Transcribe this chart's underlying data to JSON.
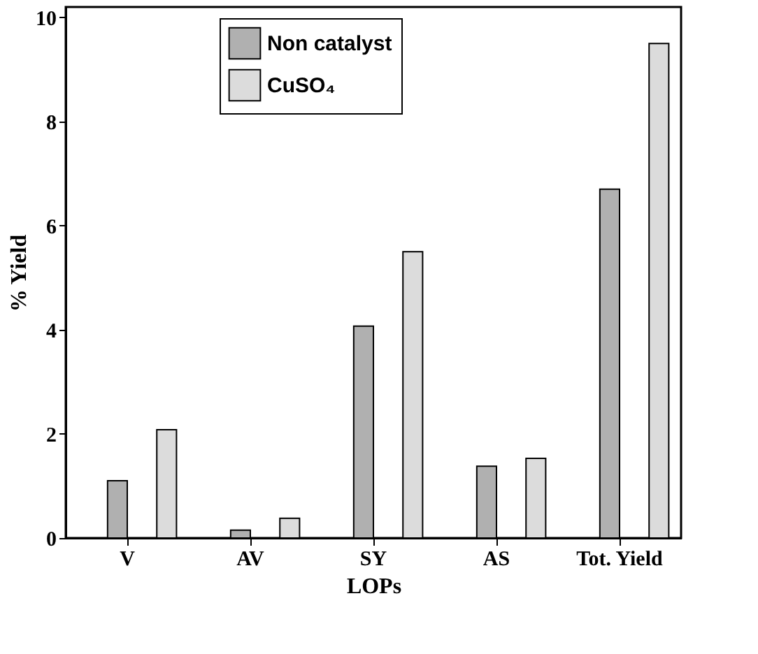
{
  "chart_data": {
    "type": "bar",
    "xlabel": "LOPs",
    "ylabel": "% Yield",
    "categories": [
      "V",
      "AV",
      "SY",
      "AS",
      "Tot. Yield"
    ],
    "series": [
      {
        "name": "Non catalyst",
        "color": "#b0b0b0",
        "values": [
          1.1,
          0.15,
          4.07,
          1.38,
          6.7
        ]
      },
      {
        "name": "CuSO₄",
        "color": "#dcdcdc",
        "values": [
          2.08,
          0.38,
          5.5,
          1.53,
          9.5
        ]
      }
    ],
    "ylim": [
      0,
      10.2
    ],
    "yticks": [
      0,
      2,
      4,
      6,
      8,
      10
    ],
    "grid": false,
    "legend": "top"
  }
}
